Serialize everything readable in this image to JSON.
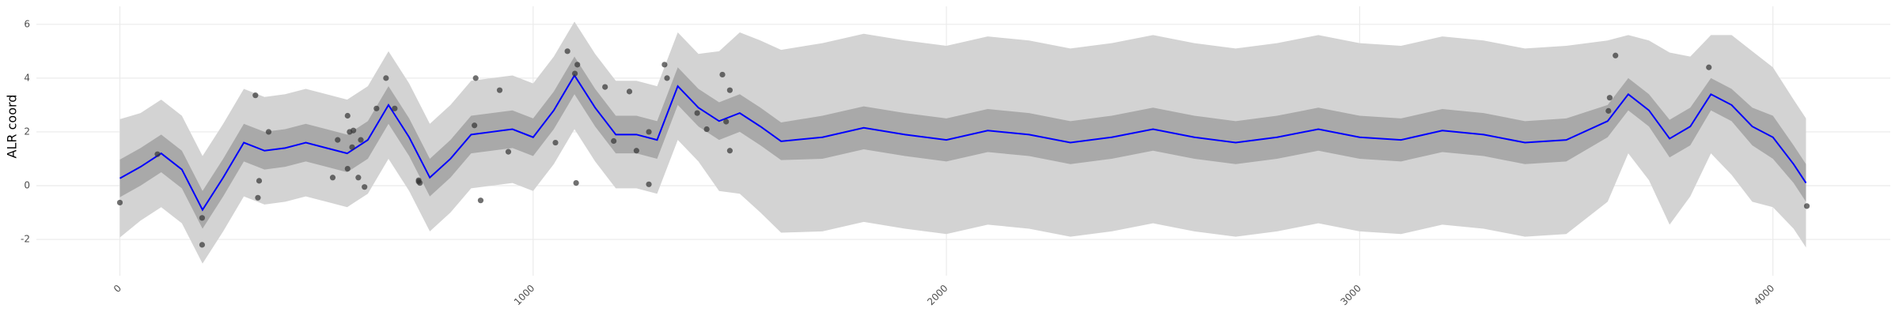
{
  "chart_data": {
    "type": "line",
    "ylabel": "ALR coord",
    "xlim": [
      -202,
      4284
    ],
    "xticks": [
      0,
      1000,
      2000,
      3000,
      4000
    ],
    "ylim": [
      -3.35,
      6.67
    ],
    "yticks": [
      -2,
      0,
      2,
      4,
      6
    ],
    "grid": true,
    "x": [
      0,
      50,
      100,
      150,
      200,
      250,
      300,
      350,
      400,
      450,
      500,
      550,
      600,
      650,
      700,
      750,
      800,
      850,
      900,
      950,
      1000,
      1050,
      1100,
      1150,
      1200,
      1250,
      1300,
      1350,
      1400,
      1450,
      1500,
      1550,
      1600,
      1700,
      1800,
      1900,
      2000,
      2100,
      2200,
      2300,
      2400,
      2500,
      2600,
      2700,
      2800,
      2900,
      3000,
      3100,
      3200,
      3300,
      3400,
      3500,
      3600,
      3650,
      3700,
      3750,
      3800,
      3850,
      3900,
      3950,
      4000,
      4050,
      4080
    ],
    "outer_band": {
      "color": "#d3d3d3",
      "lower": [
        -1.93,
        -1.3,
        -0.8,
        -1.4,
        -2.9,
        -1.7,
        -0.4,
        -0.7,
        -0.6,
        -0.4,
        -0.6,
        -0.8,
        -0.3,
        1.0,
        -0.2,
        -1.7,
        -1.0,
        -0.1,
        0,
        0.1,
        -0.2,
        0.8,
        2.1,
        0.9,
        -0.1,
        -0.1,
        -0.3,
        1.7,
        0.9,
        -0.2,
        -0.3,
        -1.0,
        -1.75,
        -1.7,
        -1.35,
        -1.6,
        -1.8,
        -1.45,
        -1.6,
        -1.9,
        -1.7,
        -1.4,
        -1.7,
        -1.9,
        -1.7,
        -1.4,
        -1.7,
        -1.8,
        -1.45,
        -1.6,
        -1.9,
        -1.8,
        -0.6,
        1.2,
        0.2,
        -1.45,
        -0.4,
        1.2,
        0.4,
        -0.6,
        -0.8,
        -1.6,
        -2.3
      ],
      "upper": [
        2.47,
        2.7,
        3.2,
        2.6,
        1.1,
        2.3,
        3.6,
        3.3,
        3.4,
        3.6,
        3.4,
        3.2,
        3.7,
        5.0,
        3.8,
        2.3,
        3.0,
        3.9,
        4.0,
        4.1,
        3.8,
        4.8,
        6.1,
        4.9,
        3.9,
        3.9,
        3.7,
        5.7,
        4.9,
        5.0,
        5.7,
        5.4,
        5.05,
        5.3,
        5.65,
        5.4,
        5.2,
        5.55,
        5.4,
        5.1,
        5.3,
        5.6,
        5.3,
        5.1,
        5.3,
        5.6,
        5.3,
        5.2,
        5.55,
        5.4,
        5.1,
        5.2,
        5.4,
        5.6,
        5.4,
        4.95,
        4.8,
        5.6,
        5.6,
        5.0,
        4.4,
        3.2,
        2.5
      ]
    },
    "inner_band": {
      "color": "#a9a9a9",
      "lower": [
        -0.43,
        0,
        0.5,
        -0.1,
        -1.6,
        -0.4,
        0.9,
        0.6,
        0.7,
        0.9,
        0.7,
        0.5,
        1.0,
        2.3,
        1.1,
        -0.4,
        0.3,
        1.2,
        1.3,
        1.4,
        1.1,
        2.1,
        3.4,
        2.2,
        1.2,
        1.2,
        1.0,
        3.0,
        2.2,
        1.7,
        2.0,
        1.5,
        0.95,
        1.0,
        1.35,
        1.1,
        0.9,
        1.25,
        1.1,
        0.8,
        1.0,
        1.3,
        1.0,
        0.8,
        1.0,
        1.3,
        1.0,
        0.9,
        1.25,
        1.1,
        0.8,
        0.9,
        1.8,
        2.8,
        2.2,
        1.05,
        1.5,
        2.8,
        2.4,
        1.5,
        1.0,
        0.1,
        -0.6
      ],
      "upper": [
        0.97,
        1.4,
        1.9,
        1.3,
        -0.2,
        1.0,
        2.3,
        2.0,
        2.1,
        2.3,
        2.1,
        1.9,
        2.4,
        3.7,
        2.5,
        1.0,
        1.7,
        2.6,
        2.7,
        2.8,
        2.5,
        3.5,
        4.8,
        3.6,
        2.6,
        2.6,
        2.4,
        4.4,
        3.6,
        3.1,
        3.4,
        2.9,
        2.35,
        2.6,
        2.95,
        2.7,
        2.5,
        2.85,
        2.7,
        2.4,
        2.6,
        2.9,
        2.6,
        2.4,
        2.6,
        2.9,
        2.6,
        2.5,
        2.85,
        2.7,
        2.4,
        2.5,
        3.0,
        4.0,
        3.4,
        2.45,
        2.9,
        4.0,
        3.6,
        2.9,
        2.6,
        1.5,
        0.8
      ]
    },
    "mean": {
      "color": "#0000ff",
      "values": [
        0.27,
        0.7,
        1.2,
        0.6,
        -0.9,
        0.3,
        1.6,
        1.3,
        1.4,
        1.6,
        1.4,
        1.2,
        1.7,
        3.0,
        1.8,
        0.3,
        1.0,
        1.9,
        2.0,
        2.1,
        1.8,
        2.8,
        4.1,
        2.9,
        1.9,
        1.9,
        1.7,
        3.7,
        2.9,
        2.4,
        2.7,
        2.2,
        1.65,
        1.8,
        2.15,
        1.9,
        1.7,
        2.05,
        1.9,
        1.6,
        1.8,
        2.1,
        1.8,
        1.6,
        1.8,
        2.1,
        1.8,
        1.7,
        2.05,
        1.9,
        1.6,
        1.7,
        2.4,
        3.4,
        2.8,
        1.75,
        2.2,
        3.4,
        3.0,
        2.2,
        1.8,
        0.8,
        0.1
      ]
    },
    "points": {
      "color": "#333333",
      "x": [
        0,
        91,
        199,
        199,
        328,
        337,
        334,
        360,
        515,
        527,
        551,
        556,
        565,
        551,
        562,
        577,
        583,
        592,
        621,
        644,
        665,
        723,
        726,
        723,
        858,
        861,
        873,
        919,
        940,
        1054,
        1083,
        1101,
        1107,
        1104,
        1174,
        1195,
        1233,
        1250,
        1280,
        1280,
        1318,
        1324,
        1397,
        1420,
        1458,
        1467,
        1476,
        1476,
        3605,
        3602,
        3619,
        3845,
        4082
      ],
      "values": [
        -0.63,
        1.17,
        -1.2,
        -2.2,
        3.36,
        0.18,
        -0.45,
        2.0,
        0.3,
        1.7,
        2.6,
        2.0,
        2.05,
        0.63,
        1.43,
        0.3,
        1.7,
        -0.05,
        2.87,
        4.0,
        2.87,
        0.2,
        0.1,
        0.15,
        2.24,
        4.0,
        -0.55,
        3.55,
        1.26,
        1.6,
        5.0,
        4.17,
        4.5,
        0.1,
        3.67,
        1.66,
        3.5,
        1.3,
        2.0,
        0.05,
        4.5,
        4.0,
        2.7,
        2.1,
        4.13,
        2.38,
        3.55,
        1.3,
        3.27,
        2.78,
        4.84,
        4.4,
        -0.76
      ]
    }
  }
}
